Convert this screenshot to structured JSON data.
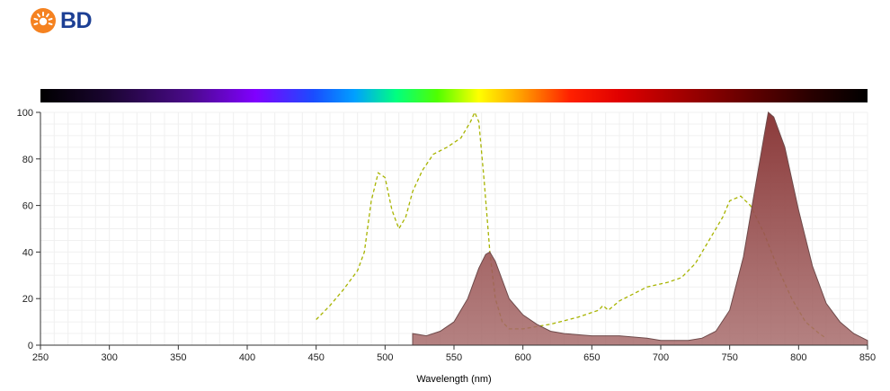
{
  "brand": {
    "logo_text": "BD",
    "logo_icon": "bd-sunburst-logo-icon",
    "logo_color": "#1c3f94",
    "icon_color": "#f58220"
  },
  "chart_data": {
    "type": "area",
    "title": "",
    "xlabel": "Wavelength (nm)",
    "ylabel": "",
    "xlim": [
      250,
      850
    ],
    "ylim": [
      0,
      100
    ],
    "x_ticks": [
      250,
      300,
      350,
      400,
      450,
      500,
      550,
      600,
      650,
      700,
      750,
      800,
      850
    ],
    "y_ticks": [
      0,
      20,
      40,
      60,
      80,
      100
    ],
    "grid": true,
    "spectrum_bar": true,
    "legend": "none",
    "series": [
      {
        "style": "dashed-line",
        "color": "#a8b400",
        "points": [
          [
            450,
            11
          ],
          [
            460,
            17
          ],
          [
            470,
            24
          ],
          [
            480,
            32
          ],
          [
            485,
            40
          ],
          [
            490,
            62
          ],
          [
            495,
            74
          ],
          [
            500,
            72
          ],
          [
            505,
            58
          ],
          [
            510,
            50
          ],
          [
            515,
            55
          ],
          [
            520,
            66
          ],
          [
            527,
            75
          ],
          [
            535,
            82
          ],
          [
            545,
            85
          ],
          [
            555,
            89
          ],
          [
            562,
            96
          ],
          [
            565,
            100
          ],
          [
            568,
            96
          ],
          [
            572,
            70
          ],
          [
            576,
            40
          ],
          [
            580,
            20
          ],
          [
            585,
            10
          ],
          [
            590,
            7
          ],
          [
            600,
            7
          ],
          [
            620,
            9
          ],
          [
            640,
            12
          ],
          [
            655,
            15
          ],
          [
            658,
            17
          ],
          [
            662,
            15
          ],
          [
            670,
            19
          ],
          [
            690,
            25
          ],
          [
            705,
            27
          ],
          [
            715,
            29
          ],
          [
            725,
            35
          ],
          [
            735,
            45
          ],
          [
            745,
            55
          ],
          [
            750,
            62
          ],
          [
            758,
            64
          ],
          [
            765,
            60
          ],
          [
            775,
            48
          ],
          [
            785,
            33
          ],
          [
            795,
            20
          ],
          [
            805,
            10
          ],
          [
            815,
            5
          ],
          [
            820,
            3
          ]
        ]
      },
      {
        "style": "filled-area",
        "color": "#8b3a3a",
        "points": [
          [
            520,
            5
          ],
          [
            530,
            4
          ],
          [
            540,
            6
          ],
          [
            550,
            10
          ],
          [
            560,
            20
          ],
          [
            568,
            33
          ],
          [
            573,
            39
          ],
          [
            576,
            40
          ],
          [
            580,
            36
          ],
          [
            585,
            28
          ],
          [
            590,
            20
          ],
          [
            600,
            13
          ],
          [
            610,
            9
          ],
          [
            620,
            6
          ],
          [
            630,
            5
          ],
          [
            650,
            4
          ],
          [
            670,
            4
          ],
          [
            690,
            3
          ],
          [
            700,
            2
          ],
          [
            710,
            2
          ],
          [
            720,
            2
          ],
          [
            730,
            3
          ],
          [
            740,
            6
          ],
          [
            750,
            15
          ],
          [
            760,
            38
          ],
          [
            768,
            66
          ],
          [
            775,
            90
          ],
          [
            778,
            100
          ],
          [
            782,
            98
          ],
          [
            790,
            85
          ],
          [
            800,
            58
          ],
          [
            810,
            34
          ],
          [
            820,
            18
          ],
          [
            830,
            10
          ],
          [
            840,
            5
          ],
          [
            850,
            2
          ]
        ]
      }
    ]
  }
}
